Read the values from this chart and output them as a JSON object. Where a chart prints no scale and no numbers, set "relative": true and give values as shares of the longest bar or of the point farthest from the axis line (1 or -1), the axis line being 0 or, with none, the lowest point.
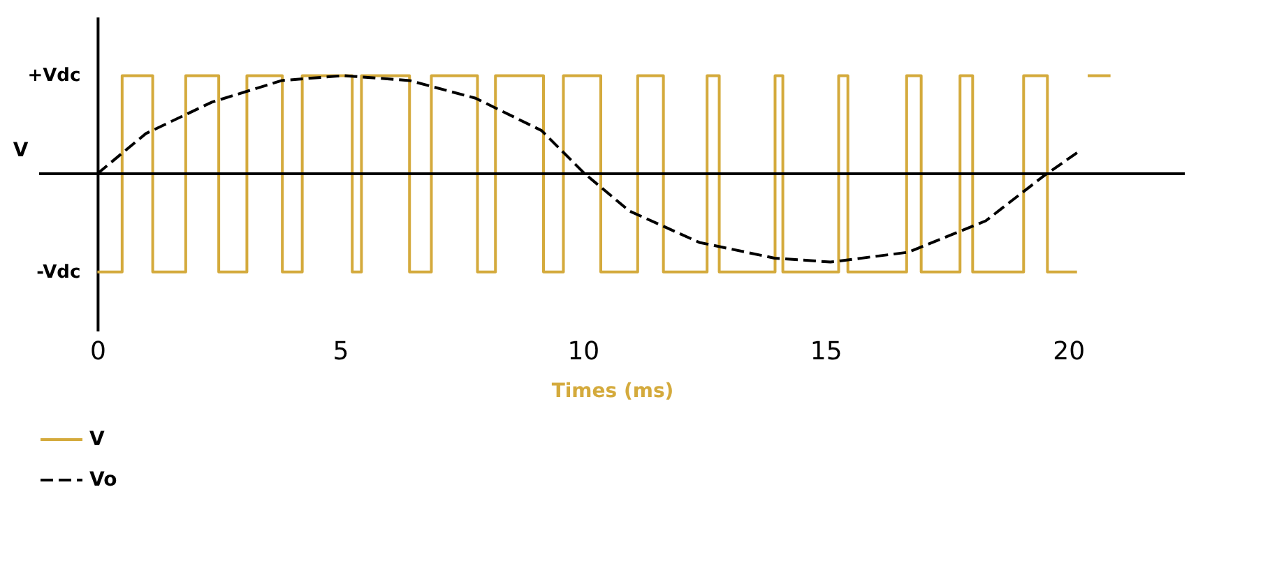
{
  "chart_data": {
    "type": "line",
    "xlabel": "Times (ms)",
    "ylabel": "V",
    "xlim": [
      -1.2,
      22.4
    ],
    "xticks": [
      0,
      5,
      10,
      15,
      20
    ],
    "relative": true,
    "annotations": [
      "+Vdc",
      "-Vdc"
    ],
    "legend": "bottom",
    "series": [
      {
        "name": "V",
        "type": "step",
        "color": "#d4aa3c",
        "line_style": "solid",
        "x": [
          0,
          0.51,
          1.14,
          1.82,
          2.5,
          3.08,
          3.81,
          4.22,
          5.25,
          5.44,
          6.43,
          6.88,
          7.83,
          8.2,
          9.19,
          9.6,
          10.37,
          11.13,
          11.66,
          12.56,
          12.81,
          13.96,
          14.12,
          15.27,
          15.46,
          16.67,
          16.97,
          17.77,
          18.03,
          19.08,
          19.57,
          20.18,
          20.29,
          20.4,
          20.87
        ],
        "values": [
          -1,
          1,
          -1,
          1,
          -1,
          1,
          -1,
          1,
          -1,
          1,
          -1,
          1,
          -1,
          1,
          -1,
          1,
          -1,
          1,
          -1,
          1,
          -1,
          1,
          -1,
          1,
          -1,
          1,
          -1,
          1,
          -1,
          1,
          -1,
          -1,
          null,
          1,
          1
        ]
      },
      {
        "name": "Vo",
        "color": "#000000",
        "line_style": "dashed",
        "x": [
          0,
          1.0,
          2.36,
          3.8,
          5.07,
          6.43,
          7.79,
          9.15,
          10.04,
          10.96,
          12.4,
          13.95,
          15.1,
          16.7,
          18.3,
          19.5,
          20.2
        ],
        "values": [
          0,
          0.41,
          0.73,
          0.95,
          1.0,
          0.95,
          0.77,
          0.44,
          0,
          -0.38,
          -0.7,
          -0.86,
          -0.9,
          -0.8,
          -0.48,
          -0.02,
          0.22
        ]
      }
    ]
  }
}
